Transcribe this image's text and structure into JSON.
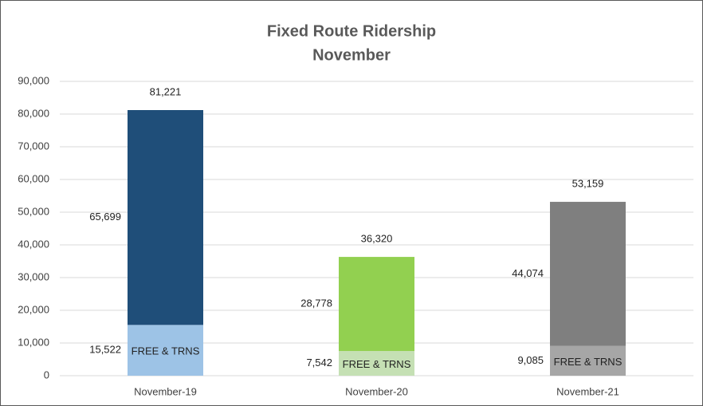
{
  "chart_data": {
    "type": "stacked_bar",
    "title": "Fixed Route Ridership",
    "subtitle": "November",
    "categories": [
      "November-19",
      "November-20",
      "November-21"
    ],
    "series": [
      {
        "name": "FREE & TRNS",
        "colors": [
          "#9dc3e6",
          "#c5e0b4",
          "#a6a6a6"
        ],
        "values": [
          15522,
          7542,
          9085
        ],
        "value_labels": [
          "15,522",
          "7,542",
          "9,085"
        ]
      },
      {
        "colors": [
          "#1f4e79",
          "#92d050",
          "#7f7f7f"
        ],
        "values": [
          65699,
          28778,
          44074
        ],
        "value_labels": [
          "65,699",
          "28,778",
          "44,074"
        ]
      }
    ],
    "totals": [
      81221,
      36320,
      53159
    ],
    "total_labels": [
      "81,221",
      "36,320",
      "53,159"
    ],
    "ylim": [
      0,
      90000
    ],
    "yticks": [
      0,
      {
        "value": 10000,
        "label": "10,000"
      },
      {
        "value": 20000,
        "label": "20,000"
      },
      {
        "value": 30000,
        "label": "30,000"
      },
      {
        "value": 40000,
        "label": "40,000"
      },
      {
        "value": 50000,
        "label": "50,000"
      },
      {
        "value": 60000,
        "label": "60,000"
      },
      {
        "value": 70000,
        "label": "70,000"
      },
      {
        "value": 80000,
        "label": "80,000"
      },
      {
        "value": 90000,
        "label": "90,000"
      }
    ],
    "grid": true
  }
}
